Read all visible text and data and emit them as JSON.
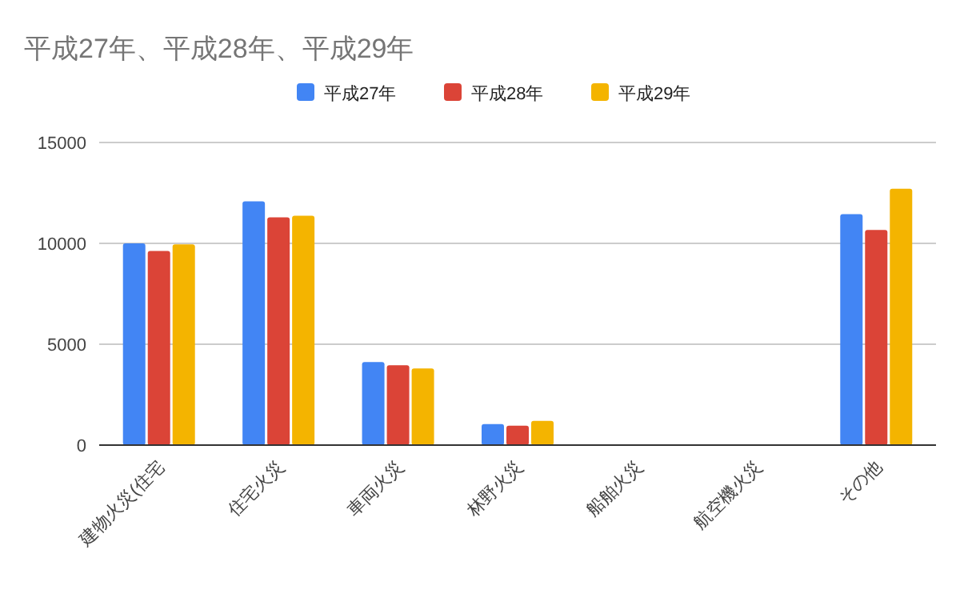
{
  "chart_data": {
    "type": "bar",
    "title": "平成27年、平成28年、平成29年",
    "categories": [
      "建物火災(住宅",
      "住宅火災",
      "車両火災",
      "林野火災",
      "船舶火災",
      "航空機火災",
      "その他"
    ],
    "series": [
      {
        "name": "平成27年",
        "color": "#4285f4",
        "values": [
          10000,
          12080,
          4120,
          1040,
          null,
          0,
          11450
        ]
      },
      {
        "name": "平成28年",
        "color": "#db4437",
        "values": [
          9620,
          11290,
          3960,
          960,
          null,
          0,
          10660
        ]
      },
      {
        "name": "平成29年",
        "color": "#f4b400",
        "values": [
          9950,
          11370,
          3800,
          1200,
          null,
          0,
          12710
        ]
      }
    ],
    "ylim": [
      0,
      15000
    ],
    "yticks": [
      0,
      5000,
      10000,
      15000
    ],
    "grid": "y",
    "legend": "top"
  }
}
